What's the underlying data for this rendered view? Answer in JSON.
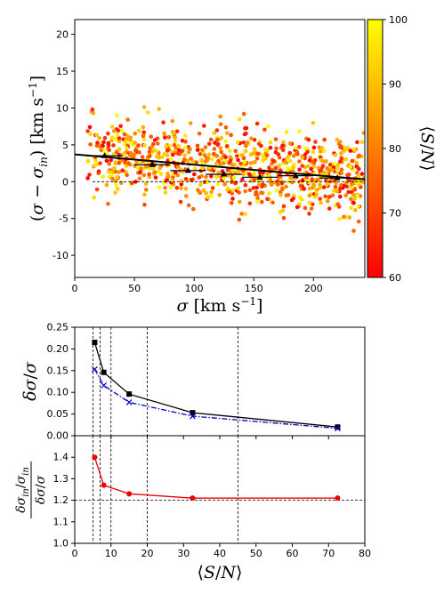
{
  "chart_data": [
    {
      "type": "scatter",
      "xlabel": "σ [km s⁻¹]",
      "ylabel": "(σ − σin) [km s⁻¹]",
      "xlim": [
        0,
        243
      ],
      "ylim": [
        -13,
        22
      ],
      "x_ticks": [
        0,
        50,
        100,
        150,
        200
      ],
      "y_ticks": [
        -10,
        -5,
        0,
        5,
        10,
        15,
        20
      ],
      "grid": false,
      "colorbar": {
        "label": "⟨S/N⟩",
        "range": [
          60,
          100
        ],
        "ticks": [
          60,
          70,
          80,
          90,
          100
        ],
        "colormap": "autumn",
        "low_color": "#ff0000",
        "high_color": "#ffff00"
      },
      "scatter_summary": {
        "n_points_approx": 900,
        "x_range": [
          10,
          243
        ],
        "y_center_at_x15": 4.0,
        "y_center_at_x243": 0.3
      },
      "series": [
        {
          "name": "",
          "style": "black triangles with error bars",
          "x": [
            25,
            65,
            95,
            125,
            155,
            185,
            220
          ],
          "y": [
            3.5,
            2.3,
            1.5,
            1.0,
            0.6,
            0.8,
            0.5
          ],
          "yerr": [
            0.25,
            0.25,
            0.25,
            0.25,
            0.25,
            0.25,
            0.25
          ]
        },
        {
          "name": "",
          "style": "black solid fit line",
          "x": [
            0,
            243
          ],
          "y": [
            3.7,
            0.3
          ]
        },
        {
          "name": "",
          "style": "black dashed reference line",
          "x": [
            15,
            243
          ],
          "y": [
            0,
            0
          ]
        }
      ]
    },
    {
      "type": "line",
      "xlabel": "",
      "ylabel": "δσ/σ",
      "xlim": [
        0,
        80
      ],
      "ylim": [
        0,
        0.25
      ],
      "x_ticks": [
        0,
        10,
        20,
        30,
        40,
        50,
        60,
        70,
        80
      ],
      "y_ticks": [
        0.0,
        0.05,
        0.1,
        0.15,
        0.2,
        0.25
      ],
      "series": [
        {
          "name": "",
          "color": "#000000",
          "marker": "square",
          "dash": "solid",
          "x": [
            5.5,
            8,
            15,
            32.5,
            72.5
          ],
          "y": [
            0.215,
            0.146,
            0.096,
            0.053,
            0.02
          ]
        },
        {
          "name": "",
          "color": "#0000cc",
          "marker": "x",
          "dash": "dashdot",
          "x": [
            5.5,
            8,
            15,
            32.5,
            72.5
          ],
          "y": [
            0.153,
            0.116,
            0.077,
            0.045,
            0.017
          ]
        }
      ],
      "vlines": [
        5,
        7,
        10,
        20,
        45
      ]
    },
    {
      "type": "line",
      "xlabel": "⟨S/N⟩",
      "ylabel": "δσin/σin / δσ/σ",
      "xlim": [
        0,
        80
      ],
      "ylim": [
        1.0,
        1.5
      ],
      "x_ticks": [
        0,
        10,
        20,
        30,
        40,
        50,
        60,
        70,
        80
      ],
      "y_ticks": [
        1.0,
        1.1,
        1.2,
        1.3,
        1.4
      ],
      "series": [
        {
          "name": "",
          "color": "#ee0000",
          "marker": "circle",
          "dash": "solid",
          "x": [
            5.5,
            8,
            15,
            32.5,
            72.5
          ],
          "y": [
            1.4,
            1.27,
            1.23,
            1.21,
            1.21
          ]
        }
      ],
      "hlines": [
        1.2
      ],
      "vlines": [
        5,
        7,
        10,
        20,
        45
      ]
    }
  ]
}
